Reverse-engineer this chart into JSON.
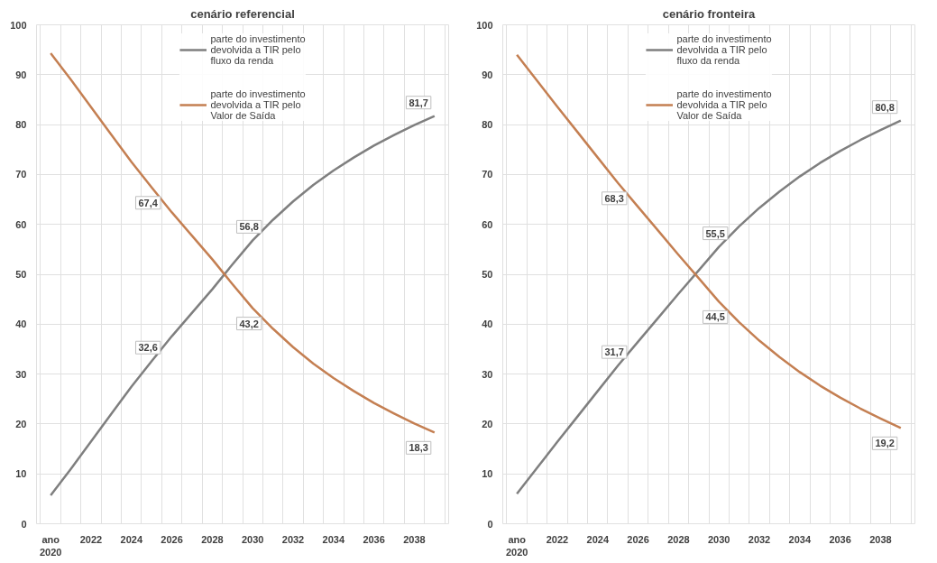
{
  "chart_data": [
    {
      "type": "line",
      "title": "cenário referencial",
      "categories": [
        "ano 2020",
        null,
        "2022",
        null,
        "2024",
        null,
        "2026",
        null,
        "2028",
        null,
        "2030",
        null,
        "2032",
        null,
        "2034",
        null,
        "2036",
        null,
        "2038",
        null
      ],
      "ylim": [
        0,
        100
      ],
      "yticks": [
        0,
        10,
        20,
        30,
        40,
        50,
        60,
        70,
        80,
        90,
        100
      ],
      "grid": true,
      "legend": "top",
      "marker": "none",
      "line_style": "solid",
      "series": [
        {
          "name": "parte do investimento devolvida a TIR pelo fluxo da renda",
          "color": "#7f7f7f",
          "values": [
            5.7,
            11,
            16.5,
            22,
            27.5,
            32.6,
            37.6,
            42.3,
            47.0,
            52.0,
            56.8,
            60.9,
            64.6,
            67.9,
            70.8,
            73.4,
            75.8,
            77.9,
            79.9,
            81.7
          ],
          "value_labels": [
            null,
            null,
            null,
            null,
            null,
            "32,6",
            null,
            null,
            null,
            null,
            "56,8",
            null,
            null,
            null,
            null,
            null,
            null,
            null,
            null,
            "81,7"
          ]
        },
        {
          "name": "parte do investimento devolvida a TIR pelo Valor de Saída",
          "color": "#c47f52",
          "values": [
            94.3,
            89,
            83.5,
            78,
            72.5,
            67.4,
            62.4,
            57.7,
            53.0,
            48.0,
            43.2,
            39.1,
            35.4,
            32.1,
            29.2,
            26.6,
            24.2,
            22.1,
            20.1,
            18.3
          ],
          "value_labels": [
            null,
            null,
            null,
            null,
            null,
            "67,4",
            null,
            null,
            null,
            null,
            "43,2",
            null,
            null,
            null,
            null,
            null,
            null,
            null,
            null,
            "18,3"
          ]
        }
      ]
    },
    {
      "type": "line",
      "title": "cenário fronteira",
      "categories": [
        "ano 2020",
        null,
        "2022",
        null,
        "2024",
        null,
        "2026",
        null,
        "2028",
        null,
        "2030",
        null,
        "2032",
        null,
        "2034",
        null,
        "2036",
        null,
        "2038",
        null
      ],
      "ylim": [
        0,
        100
      ],
      "yticks": [
        0,
        10,
        20,
        30,
        40,
        50,
        60,
        70,
        80,
        90,
        100
      ],
      "grid": true,
      "legend": "top",
      "marker": "none",
      "line_style": "solid",
      "series": [
        {
          "name": "parte do investimento devolvida a TIR pelo fluxo da renda",
          "color": "#7f7f7f",
          "values": [
            6.0,
            11.2,
            16.4,
            21.5,
            26.6,
            31.7,
            36.5,
            41.3,
            46.1,
            50.8,
            55.5,
            59.6,
            63.3,
            66.6,
            69.6,
            72.3,
            74.7,
            76.9,
            78.9,
            80.8
          ],
          "value_labels": [
            null,
            null,
            null,
            null,
            null,
            "31,7",
            null,
            null,
            null,
            null,
            "55,5",
            null,
            null,
            null,
            null,
            null,
            null,
            null,
            null,
            "80,8"
          ]
        },
        {
          "name": "parte do investimento devolvida a TIR pelo Valor de Saída",
          "color": "#c47f52",
          "values": [
            94.0,
            88.8,
            83.6,
            78.5,
            73.4,
            68.3,
            63.5,
            58.7,
            53.9,
            49.2,
            44.5,
            40.4,
            36.7,
            33.4,
            30.4,
            27.7,
            25.3,
            23.1,
            21.1,
            19.2
          ],
          "value_labels": [
            null,
            null,
            null,
            null,
            null,
            "68,3",
            null,
            null,
            null,
            null,
            "44,5",
            null,
            null,
            null,
            null,
            null,
            null,
            null,
            null,
            "19,2"
          ]
        }
      ]
    }
  ]
}
